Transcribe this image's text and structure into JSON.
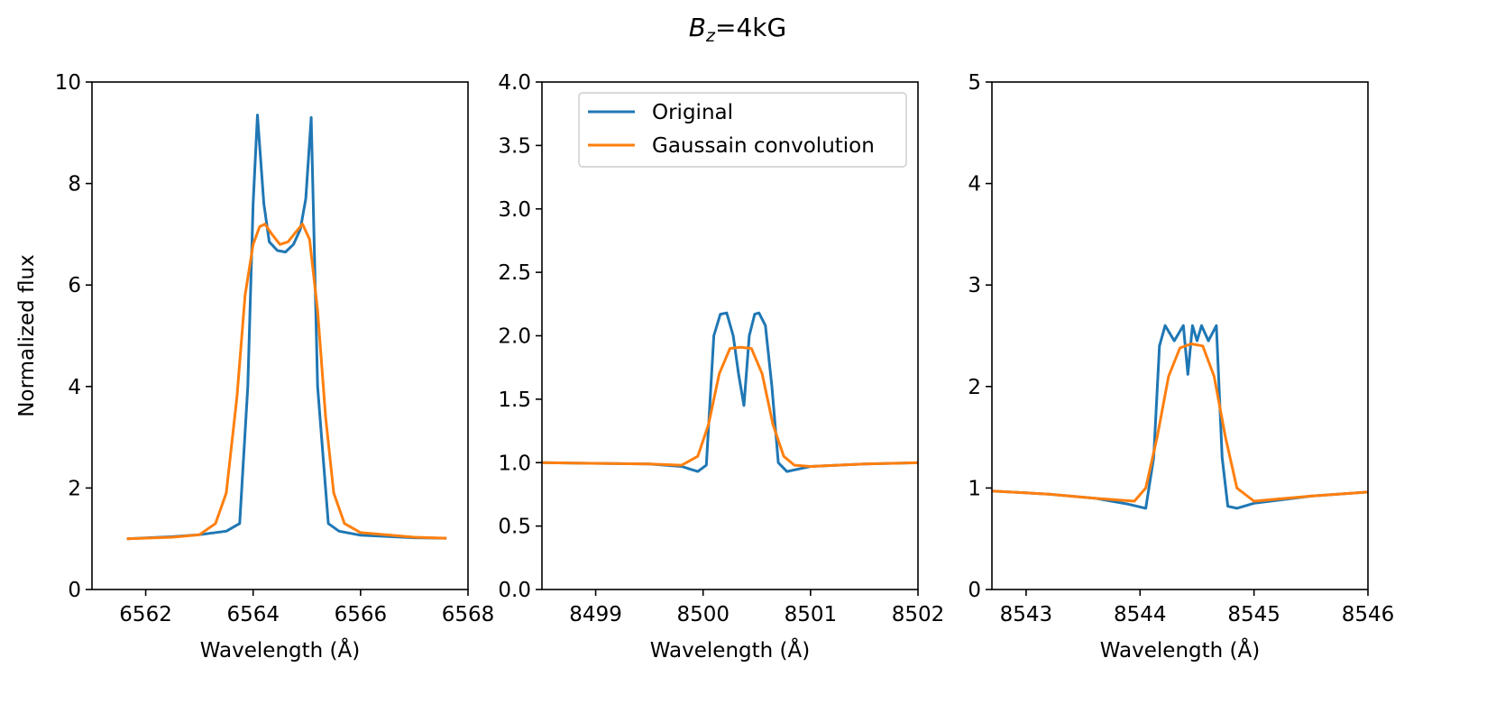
{
  "figure": {
    "title_main": "B",
    "title_sub": "z",
    "title_rest": "=4kG"
  },
  "colors": {
    "original": "#1f77b4",
    "convolution": "#ff7f0e"
  },
  "legend": {
    "items": [
      "Original",
      "Gaussain convolution"
    ],
    "location": "upper center of middle panel"
  },
  "chart_data": [
    {
      "type": "line",
      "xlabel": "Wavelength (Å)",
      "ylabel": "Normalized flux",
      "xlim": [
        6561,
        6568
      ],
      "ylim": [
        0,
        10
      ],
      "xticks": [
        6562,
        6564,
        6566,
        6568
      ],
      "yticks": [
        0,
        2,
        4,
        6,
        8,
        10
      ],
      "yticklabels": [
        "0",
        "2",
        "4",
        "6",
        "8",
        "10"
      ],
      "series": [
        {
          "name": "Original",
          "x": [
            6561.65,
            6562.5,
            6563.0,
            6563.5,
            6563.75,
            6563.9,
            6564.0,
            6564.08,
            6564.2,
            6564.3,
            6564.45,
            6564.6,
            6564.75,
            6564.88,
            6564.98,
            6565.08,
            6565.2,
            6565.4,
            6565.6,
            6566.0,
            6567.0,
            6567.6
          ],
          "y": [
            1.0,
            1.04,
            1.08,
            1.15,
            1.3,
            4.0,
            7.6,
            9.35,
            7.6,
            6.85,
            6.68,
            6.65,
            6.8,
            7.1,
            7.7,
            9.3,
            4.0,
            1.3,
            1.15,
            1.07,
            1.02,
            1.01
          ]
        },
        {
          "name": "Gaussain convolution",
          "x": [
            6561.65,
            6562.5,
            6563.0,
            6563.3,
            6563.5,
            6563.7,
            6563.85,
            6564.0,
            6564.12,
            6564.22,
            6564.35,
            6564.5,
            6564.65,
            6564.8,
            6564.92,
            6565.05,
            6565.2,
            6565.35,
            6565.5,
            6565.7,
            6566.0,
            6567.0,
            6567.6
          ],
          "y": [
            1.0,
            1.03,
            1.08,
            1.3,
            1.9,
            3.8,
            5.8,
            6.8,
            7.15,
            7.2,
            7.0,
            6.8,
            6.85,
            7.05,
            7.2,
            6.9,
            5.5,
            3.4,
            1.9,
            1.3,
            1.12,
            1.03,
            1.01
          ]
        }
      ]
    },
    {
      "type": "line",
      "xlabel": "Wavelength (Å)",
      "ylabel": "",
      "xlim": [
        8498.5,
        8502
      ],
      "ylim": [
        0,
        4
      ],
      "xticks": [
        8499,
        8500,
        8501,
        8502
      ],
      "yticks": [
        0,
        0.5,
        1.0,
        1.5,
        2.0,
        2.5,
        3.0,
        3.5,
        4.0
      ],
      "yticklabels": [
        "0.0",
        "0.5",
        "1.0",
        "1.5",
        "2.0",
        "2.5",
        "3.0",
        "3.5",
        "4.0"
      ],
      "series": [
        {
          "name": "Original",
          "x": [
            8498.5,
            8499.5,
            8499.8,
            8499.95,
            8500.03,
            8500.1,
            8500.16,
            8500.22,
            8500.28,
            8500.33,
            8500.38,
            8500.43,
            8500.48,
            8500.52,
            8500.58,
            8500.64,
            8500.7,
            8500.78,
            8501.0,
            8501.5,
            8502.0
          ],
          "y": [
            1.0,
            0.99,
            0.97,
            0.93,
            0.98,
            2.0,
            2.17,
            2.18,
            2.0,
            1.7,
            1.45,
            2.0,
            2.17,
            2.18,
            2.08,
            1.6,
            1.0,
            0.93,
            0.97,
            0.99,
            1.0
          ]
        },
        {
          "name": "Gaussain convolution",
          "x": [
            8498.5,
            8499.5,
            8499.8,
            8499.95,
            8500.05,
            8500.15,
            8500.25,
            8500.35,
            8500.45,
            8500.55,
            8500.65,
            8500.75,
            8500.85,
            8501.0,
            8501.5,
            8502.0
          ],
          "y": [
            1.0,
            0.99,
            0.98,
            1.05,
            1.3,
            1.7,
            1.9,
            1.91,
            1.9,
            1.7,
            1.3,
            1.05,
            0.98,
            0.97,
            0.99,
            1.0
          ]
        }
      ]
    },
    {
      "type": "line",
      "xlabel": "Wavelength (Å)",
      "ylabel": "",
      "xlim": [
        8542.7,
        8546
      ],
      "ylim": [
        0,
        5
      ],
      "xticks": [
        8543,
        8544,
        8545,
        8546
      ],
      "yticks": [
        0,
        1,
        2,
        3,
        4,
        5
      ],
      "yticklabels": [
        "0",
        "1",
        "2",
        "3",
        "4",
        "5"
      ],
      "series": [
        {
          "name": "Original",
          "x": [
            8542.7,
            8543.2,
            8543.6,
            8543.9,
            8544.05,
            8544.12,
            8544.17,
            8544.22,
            8544.3,
            8544.38,
            8544.42,
            8544.46,
            8544.5,
            8544.54,
            8544.6,
            8544.67,
            8544.72,
            8544.77,
            8544.85,
            8545.0,
            8545.5,
            8546.0
          ],
          "y": [
            0.97,
            0.94,
            0.9,
            0.84,
            0.8,
            1.3,
            2.4,
            2.6,
            2.45,
            2.6,
            2.12,
            2.6,
            2.45,
            2.6,
            2.45,
            2.6,
            1.3,
            0.82,
            0.8,
            0.85,
            0.92,
            0.96
          ]
        },
        {
          "name": "Gaussain convolution",
          "x": [
            8542.7,
            8543.2,
            8543.6,
            8543.95,
            8544.05,
            8544.15,
            8544.25,
            8544.35,
            8544.45,
            8544.55,
            8544.65,
            8544.75,
            8544.85,
            8545.0,
            8545.5,
            8546.0
          ],
          "y": [
            0.97,
            0.94,
            0.9,
            0.87,
            1.0,
            1.5,
            2.1,
            2.38,
            2.42,
            2.4,
            2.1,
            1.5,
            1.0,
            0.87,
            0.92,
            0.96
          ]
        }
      ]
    }
  ]
}
